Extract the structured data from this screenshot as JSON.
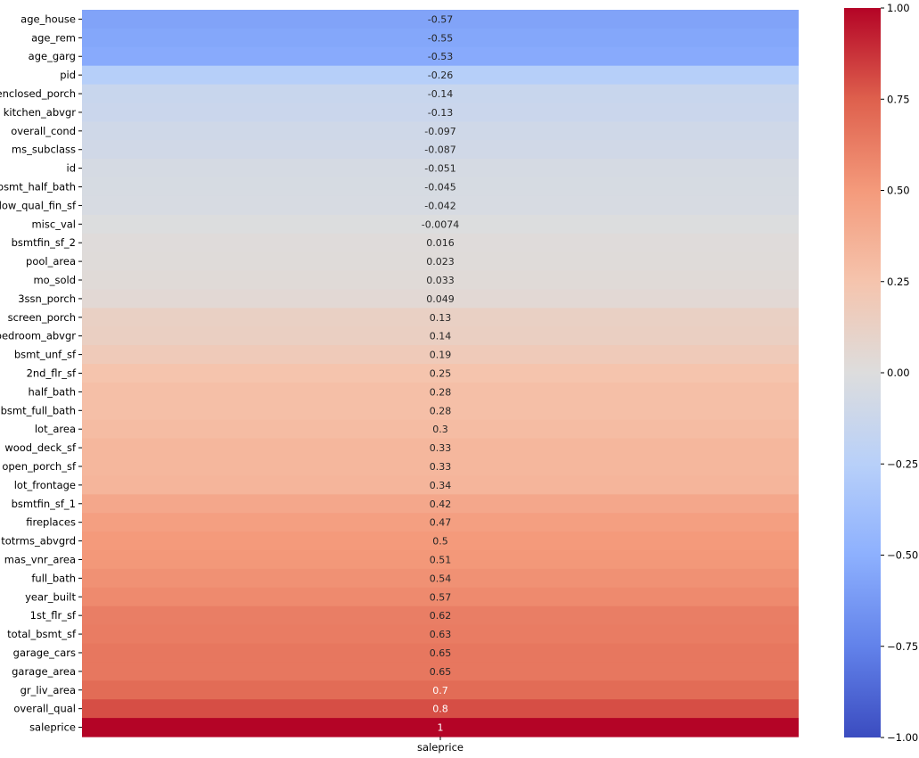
{
  "chart_data": {
    "type": "heatmap",
    "title": "",
    "xlabel": "",
    "ylabel": "",
    "columns": [
      "saleprice"
    ],
    "rows": [
      "age_house",
      "age_rem",
      "age_garg",
      "pid",
      "enclosed_porch",
      "kitchen_abvgr",
      "overall_cond",
      "ms_subclass",
      "id",
      "bsmt_half_bath",
      "low_qual_fin_sf",
      "misc_val",
      "bsmtfin_sf_2",
      "pool_area",
      "mo_sold",
      "3ssn_porch",
      "screen_porch",
      "bedroom_abvgr",
      "bsmt_unf_sf",
      "2nd_flr_sf",
      "half_bath",
      "bsmt_full_bath",
      "lot_area",
      "wood_deck_sf",
      "open_porch_sf",
      "lot_frontage",
      "bsmtfin_sf_1",
      "fireplaces",
      "totrms_abvgrd",
      "mas_vnr_area",
      "full_bath",
      "year_built",
      "1st_flr_sf",
      "total_bsmt_sf",
      "garage_cars",
      "garage_area",
      "gr_liv_area",
      "overall_qual",
      "saleprice"
    ],
    "values": [
      -0.57,
      -0.55,
      -0.53,
      -0.26,
      -0.14,
      -0.13,
      -0.097,
      -0.087,
      -0.051,
      -0.045,
      -0.042,
      -0.0074,
      0.016,
      0.023,
      0.033,
      0.049,
      0.13,
      0.14,
      0.19,
      0.25,
      0.28,
      0.28,
      0.3,
      0.33,
      0.33,
      0.34,
      0.42,
      0.47,
      0.5,
      0.51,
      0.54,
      0.57,
      0.62,
      0.63,
      0.65,
      0.65,
      0.7,
      0.8,
      1
    ],
    "annotations": [
      "-0.57",
      "-0.55",
      "-0.53",
      "-0.26",
      "-0.14",
      "-0.13",
      "-0.097",
      "-0.087",
      "-0.051",
      "-0.045",
      "-0.042",
      "-0.0074",
      "0.016",
      "0.023",
      "0.033",
      "0.049",
      "0.13",
      "0.14",
      "0.19",
      "0.25",
      "0.28",
      "0.28",
      "0.3",
      "0.33",
      "0.33",
      "0.34",
      "0.42",
      "0.47",
      "0.5",
      "0.51",
      "0.54",
      "0.57",
      "0.62",
      "0.63",
      "0.65",
      "0.65",
      "0.7",
      "0.8",
      "1"
    ],
    "colormap": "coolwarm",
    "vmin": -1.0,
    "vmax": 1.0,
    "colorbar_ticks": [
      "1.00",
      "0.75",
      "0.50",
      "0.25",
      "0.00",
      "−0.25",
      "−0.50",
      "−0.75",
      "−1.00"
    ],
    "colorbar_tick_values": [
      1.0,
      0.75,
      0.5,
      0.25,
      0.0,
      -0.25,
      -0.5,
      -0.75,
      -1.0
    ],
    "grid": false,
    "legend": "colorbar-right"
  }
}
